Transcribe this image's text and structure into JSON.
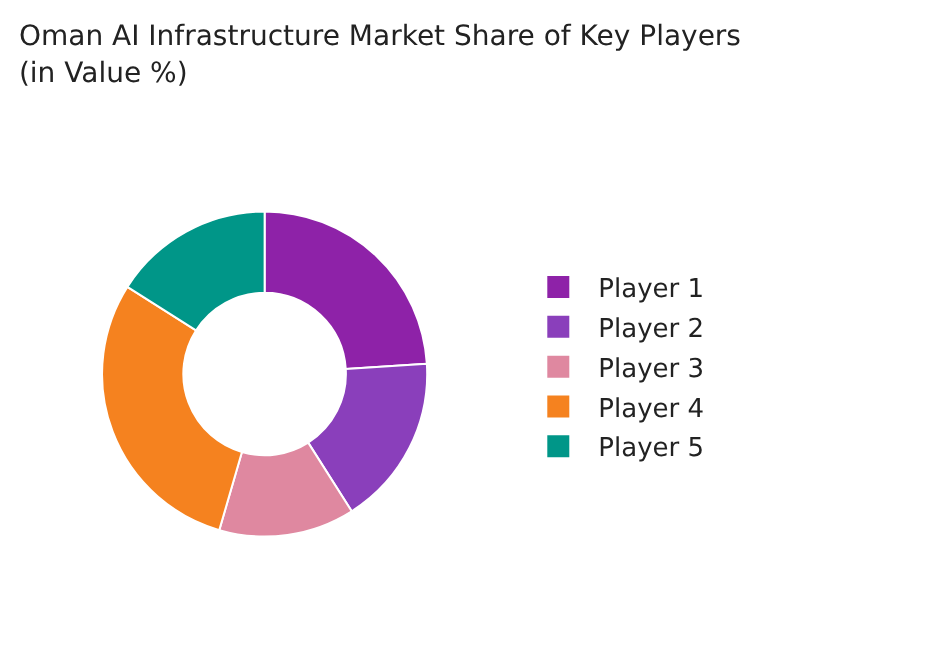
{
  "chart_data": {
    "type": "donut",
    "title": "Oman AI Infrastructure Market Share of Key Players (in Value %)",
    "categories": [
      "Player 1",
      "Player 2",
      "Player 3",
      "Player 4",
      "Player 5"
    ],
    "values": [
      24,
      17,
      13.5,
      29.5,
      16
    ],
    "colors": [
      "#8e22a8",
      "#8a3fbb",
      "#df88a0",
      "#f5821f",
      "#009688"
    ],
    "legend": "right"
  }
}
